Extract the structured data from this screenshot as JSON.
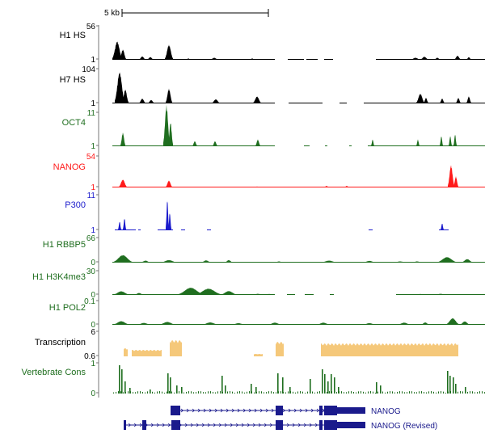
{
  "scale_bar": {
    "label": "5 kb"
  },
  "colors": {
    "black": "#000000",
    "green": "#1f6e1f",
    "red": "#ff1a1a",
    "blue": "#1a1acc",
    "orange": "#f5c87a",
    "navy": "#1a1a8c",
    "axis": "#555555"
  },
  "tracks": [
    {
      "key": "h1hs",
      "label": "H1 HS",
      "max": "56",
      "min": "1",
      "color": "black",
      "peaks": [
        [
          145,
          6,
          54
        ],
        [
          152,
          4,
          30
        ],
        [
          176,
          4,
          10
        ],
        [
          186,
          4,
          8
        ],
        [
          209,
          5,
          44
        ],
        [
          233,
          3,
          4
        ],
        [
          265,
          5,
          6
        ],
        [
          312,
          3,
          4
        ],
        [
          514,
          6,
          6
        ],
        [
          525,
          5,
          9
        ],
        [
          541,
          4,
          6
        ],
        [
          566,
          4,
          12
        ],
        [
          580,
          3,
          8
        ]
      ],
      "segs": [
        [
          139,
          340
        ],
        [
          356,
          376
        ],
        [
          379,
          393
        ],
        [
          401,
          412
        ],
        [
          465,
          600
        ]
      ]
    },
    {
      "key": "h7hs",
      "label": "H7 HS",
      "max": "104",
      "min": "1",
      "color": "black",
      "peaks": [
        [
          148,
          6,
          90
        ],
        [
          155,
          4,
          40
        ],
        [
          176,
          4,
          14
        ],
        [
          187,
          4,
          10
        ],
        [
          209,
          4,
          42
        ],
        [
          267,
          5,
          12
        ],
        [
          318,
          5,
          20
        ],
        [
          520,
          5,
          28
        ],
        [
          527,
          3,
          16
        ],
        [
          547,
          3,
          14
        ],
        [
          567,
          3,
          16
        ],
        [
          580,
          3,
          20
        ]
      ],
      "segs": [
        [
          139,
          340
        ],
        [
          357,
          399
        ],
        [
          420,
          429
        ],
        [
          450,
          600
        ]
      ]
    },
    {
      "key": "oct4",
      "label": "OCT4",
      "max": "11",
      "min": "1",
      "color": "green",
      "peaks": [
        [
          152,
          3,
          40
        ],
        [
          206,
          4,
          120
        ],
        [
          211,
          3,
          70
        ],
        [
          241,
          3,
          15
        ],
        [
          266,
          3,
          15
        ],
        [
          319,
          3,
          20
        ],
        [
          461,
          2,
          20
        ],
        [
          517,
          2,
          20
        ],
        [
          546,
          2,
          30
        ],
        [
          557,
          2,
          30
        ],
        [
          563,
          2,
          35
        ]
      ],
      "segs": [
        [
          139,
          340
        ],
        [
          376,
          383
        ],
        [
          402,
          405
        ],
        [
          432,
          435
        ],
        [
          455,
          600
        ]
      ]
    },
    {
      "key": "nanog",
      "label": "NANOG",
      "max": "54",
      "min": "1",
      "color": "red",
      "peaks": [
        [
          152,
          5,
          25
        ],
        [
          209,
          4,
          22
        ],
        [
          318,
          3,
          3
        ],
        [
          404,
          3,
          5
        ],
        [
          429,
          3,
          5
        ],
        [
          558,
          4,
          70
        ],
        [
          564,
          3,
          35
        ]
      ],
      "segs": [
        [
          139,
          600
        ]
      ]
    },
    {
      "key": "p300",
      "label": "P300",
      "max": "11",
      "min": "1",
      "color": "blue",
      "peaks": [
        [
          148,
          2,
          25
        ],
        [
          154,
          2,
          35
        ],
        [
          207,
          2,
          88
        ],
        [
          210,
          2,
          50
        ],
        [
          547,
          2,
          20
        ]
      ],
      "segs": [
        [
          142,
          168
        ],
        [
          171,
          174
        ],
        [
          195,
          214
        ],
        [
          224,
          229
        ],
        [
          256,
          261
        ],
        [
          456,
          461
        ],
        [
          543,
          555
        ]
      ]
    },
    {
      "key": "rbbp5",
      "label": "H1 RBBP5",
      "max": "66",
      "min": "0",
      "color": "green",
      "peaks": [
        [
          152,
          12,
          30
        ],
        [
          180,
          6,
          8
        ],
        [
          209,
          10,
          10
        ],
        [
          255,
          6,
          9
        ],
        [
          283,
          5,
          10
        ],
        [
          345,
          5,
          5
        ],
        [
          407,
          10,
          8
        ],
        [
          457,
          8,
          7
        ],
        [
          495,
          8,
          5
        ],
        [
          516,
          6,
          5
        ],
        [
          553,
          12,
          22
        ],
        [
          578,
          7,
          14
        ]
      ],
      "segs": [
        [
          139,
          600
        ]
      ]
    },
    {
      "key": "h3k4me3",
      "label": "H1 H3K4me3",
      "max": "30",
      "min": "0",
      "color": "green",
      "peaks": [
        [
          150,
          10,
          15
        ],
        [
          172,
          6,
          8
        ],
        [
          236,
          16,
          30
        ],
        [
          258,
          16,
          26
        ],
        [
          283,
          10,
          16
        ],
        [
          319,
          5,
          5
        ],
        [
          333,
          4,
          4
        ],
        [
          358,
          3,
          3
        ],
        [
          520,
          5,
          4
        ],
        [
          545,
          6,
          5
        ]
      ],
      "segs": [
        [
          139,
          340
        ],
        [
          355,
          365
        ],
        [
          377,
          388
        ],
        [
          408,
          413
        ],
        [
          490,
          600
        ]
      ]
    },
    {
      "key": "pol2",
      "label": "H1 POL2",
      "max": "0.1",
      "min": "0",
      "color": "green",
      "peaks": [
        [
          150,
          10,
          15
        ],
        [
          178,
          8,
          8
        ],
        [
          207,
          10,
          12
        ],
        [
          260,
          10,
          10
        ],
        [
          295,
          8,
          7
        ],
        [
          340,
          8,
          9
        ],
        [
          400,
          8,
          9
        ],
        [
          457,
          8,
          7
        ],
        [
          500,
          8,
          9
        ],
        [
          526,
          5,
          10
        ],
        [
          560,
          8,
          27
        ],
        [
          575,
          6,
          14
        ]
      ],
      "segs": [
        [
          139,
          600
        ]
      ]
    },
    {
      "key": "transcription",
      "label": "Transcription",
      "max": "6",
      "min": "0.6",
      "color": "orange",
      "blocks": [
        [
          153,
          158,
          10
        ],
        [
          163,
          200,
          8
        ],
        [
          210,
          225,
          20
        ],
        [
          314,
          325,
          3
        ],
        [
          341,
          351,
          18
        ],
        [
          397,
          567,
          16
        ]
      ],
      "segs": []
    },
    {
      "key": "cons",
      "label": "Vertebrate Cons",
      "max": "1",
      "min": "0",
      "color": "green",
      "spikes": [
        [
          147,
          35
        ],
        [
          150,
          30
        ],
        [
          154,
          15
        ],
        [
          160,
          7
        ],
        [
          185,
          5
        ],
        [
          207,
          25
        ],
        [
          210,
          20
        ],
        [
          218,
          10
        ],
        [
          224,
          8
        ],
        [
          274,
          22
        ],
        [
          278,
          10
        ],
        [
          310,
          12
        ],
        [
          316,
          8
        ],
        [
          343,
          25
        ],
        [
          349,
          20
        ],
        [
          358,
          8
        ],
        [
          383,
          18
        ],
        [
          398,
          30
        ],
        [
          401,
          24
        ],
        [
          405,
          15
        ],
        [
          409,
          24
        ],
        [
          413,
          20
        ],
        [
          418,
          8
        ],
        [
          465,
          14
        ],
        [
          470,
          10
        ],
        [
          553,
          28
        ],
        [
          556,
          22
        ],
        [
          560,
          20
        ],
        [
          563,
          12
        ],
        [
          575,
          8
        ]
      ]
    }
  ],
  "genes": [
    {
      "label": "NANOG",
      "start": 211,
      "end": 452,
      "exons": [
        [
          211,
          223,
          12
        ],
        [
          341,
          350,
          12
        ],
        [
          395,
          399,
          12
        ],
        [
          401,
          417,
          12
        ],
        [
          417,
          452,
          8
        ]
      ]
    },
    {
      "label": "NANOG (Revised)",
      "start": 153,
      "end": 452,
      "exons": [
        [
          153,
          156,
          12
        ],
        [
          176,
          181,
          12
        ],
        [
          212,
          223,
          12
        ],
        [
          341,
          350,
          12
        ],
        [
          395,
          399,
          12
        ],
        [
          401,
          417,
          12
        ],
        [
          417,
          452,
          8
        ]
      ]
    }
  ]
}
